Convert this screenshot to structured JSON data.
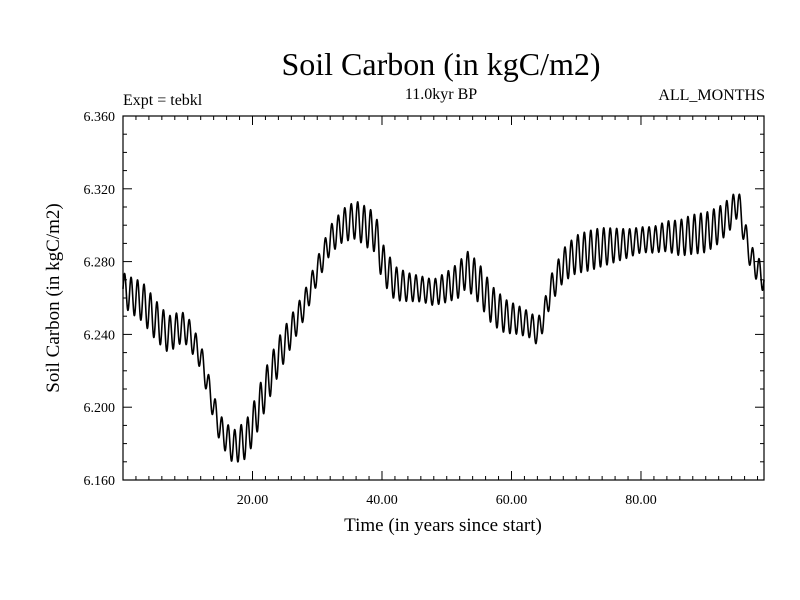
{
  "chart_data": {
    "type": "line",
    "title": "Soil Carbon (in kgC/m2)",
    "subtitle": "11.0kyr BP",
    "left_note": "Expt = tebkl",
    "right_note": "ALL_MONTHS",
    "xlabel": "Time (in years since start)",
    "ylabel": "Soil Carbon (in kgC/m2)",
    "xlim": [
      0,
      99
    ],
    "ylim": [
      6.16,
      6.36
    ],
    "x_ticks": [
      20,
      40,
      60,
      80
    ],
    "x_tick_labels": [
      "20.00",
      "40.00",
      "60.00",
      "80.00"
    ],
    "y_ticks": [
      6.16,
      6.2,
      6.24,
      6.28,
      6.32,
      6.36
    ],
    "y_tick_labels": [
      "6.160",
      "6.200",
      "6.240",
      "6.280",
      "6.320",
      "6.360"
    ],
    "series": [
      {
        "name": "Soil Carbon",
        "seasonal_amplitude": 0.011,
        "cycles_per_year": 1,
        "annual_mean": {
          "x": [
            0,
            1,
            3,
            5,
            7,
            9,
            10,
            12,
            14,
            15,
            17,
            19,
            20,
            22,
            24,
            26,
            28,
            30,
            32,
            34,
            36,
            38,
            39,
            40,
            42,
            44,
            46,
            48,
            50,
            52,
            53,
            55,
            57,
            59,
            61,
            63,
            64,
            65,
            66,
            68,
            70,
            72,
            74,
            76,
            78,
            80,
            82,
            84,
            86,
            88,
            90,
            92,
            94,
            95,
            96,
            97,
            98,
            99
          ],
          "y": [
            6.265,
            6.262,
            6.258,
            6.248,
            6.24,
            6.244,
            6.242,
            6.228,
            6.2,
            6.188,
            6.178,
            6.182,
            6.19,
            6.21,
            6.228,
            6.242,
            6.256,
            6.275,
            6.292,
            6.3,
            6.303,
            6.298,
            6.296,
            6.28,
            6.268,
            6.266,
            6.265,
            6.263,
            6.266,
            6.27,
            6.276,
            6.268,
            6.256,
            6.25,
            6.248,
            6.245,
            6.241,
            6.25,
            6.264,
            6.278,
            6.284,
            6.286,
            6.288,
            6.289,
            6.29,
            6.292,
            6.292,
            6.294,
            6.293,
            6.295,
            6.296,
            6.3,
            6.307,
            6.313,
            6.296,
            6.282,
            6.276,
            6.27
          ]
        }
      }
    ]
  }
}
